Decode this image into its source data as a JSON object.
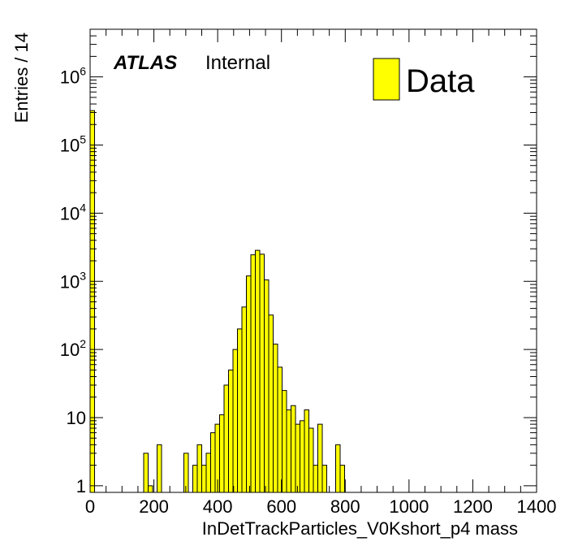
{
  "chart_data": {
    "type": "bar",
    "histogram": true,
    "log_y": true,
    "xlabel": "InDetTrackParticles_V0Kshort_p4 mass",
    "ylabel": "Entries / 14",
    "xlim": [
      0,
      1400
    ],
    "ylim": [
      0.8,
      5000000
    ],
    "bin_width": 14,
    "x_ticks": [
      "0",
      "200",
      "400",
      "600",
      "800",
      "1000",
      "1200",
      "1400"
    ],
    "y_ticks": [
      {
        "base": "1",
        "exp": ""
      },
      {
        "base": "10",
        "exp": ""
      },
      {
        "base": "10",
        "exp": "2"
      },
      {
        "base": "10",
        "exp": "3"
      },
      {
        "base": "10",
        "exp": "4"
      },
      {
        "base": "10",
        "exp": "5"
      },
      {
        "base": "10",
        "exp": "6"
      }
    ],
    "atlas_label": "ATLAS",
    "status_label": "Internal",
    "legend": {
      "label": "Data",
      "position": "top-right"
    },
    "fill_color": "#ffff00",
    "line_color": "#000000",
    "bins": [
      {
        "x": 0,
        "value": 320000
      },
      {
        "x": 168,
        "value": 3
      },
      {
        "x": 182,
        "value": 1
      },
      {
        "x": 210,
        "value": 4
      },
      {
        "x": 294,
        "value": 3
      },
      {
        "x": 322,
        "value": 2
      },
      {
        "x": 336,
        "value": 4
      },
      {
        "x": 350,
        "value": 2
      },
      {
        "x": 364,
        "value": 3
      },
      {
        "x": 378,
        "value": 6
      },
      {
        "x": 392,
        "value": 8
      },
      {
        "x": 406,
        "value": 11
      },
      {
        "x": 420,
        "value": 30
      },
      {
        "x": 434,
        "value": 50
      },
      {
        "x": 448,
        "value": 100
      },
      {
        "x": 462,
        "value": 200
      },
      {
        "x": 476,
        "value": 420
      },
      {
        "x": 490,
        "value": 1200
      },
      {
        "x": 504,
        "value": 2450
      },
      {
        "x": 518,
        "value": 2850
      },
      {
        "x": 532,
        "value": 2500
      },
      {
        "x": 546,
        "value": 1050
      },
      {
        "x": 560,
        "value": 320
      },
      {
        "x": 574,
        "value": 120
      },
      {
        "x": 588,
        "value": 55
      },
      {
        "x": 602,
        "value": 25
      },
      {
        "x": 616,
        "value": 13
      },
      {
        "x": 630,
        "value": 15
      },
      {
        "x": 644,
        "value": 8
      },
      {
        "x": 658,
        "value": 9
      },
      {
        "x": 672,
        "value": 13
      },
      {
        "x": 686,
        "value": 7
      },
      {
        "x": 700,
        "value": 2
      },
      {
        "x": 714,
        "value": 8
      },
      {
        "x": 728,
        "value": 2
      },
      {
        "x": 770,
        "value": 4
      },
      {
        "x": 784,
        "value": 2
      }
    ]
  }
}
